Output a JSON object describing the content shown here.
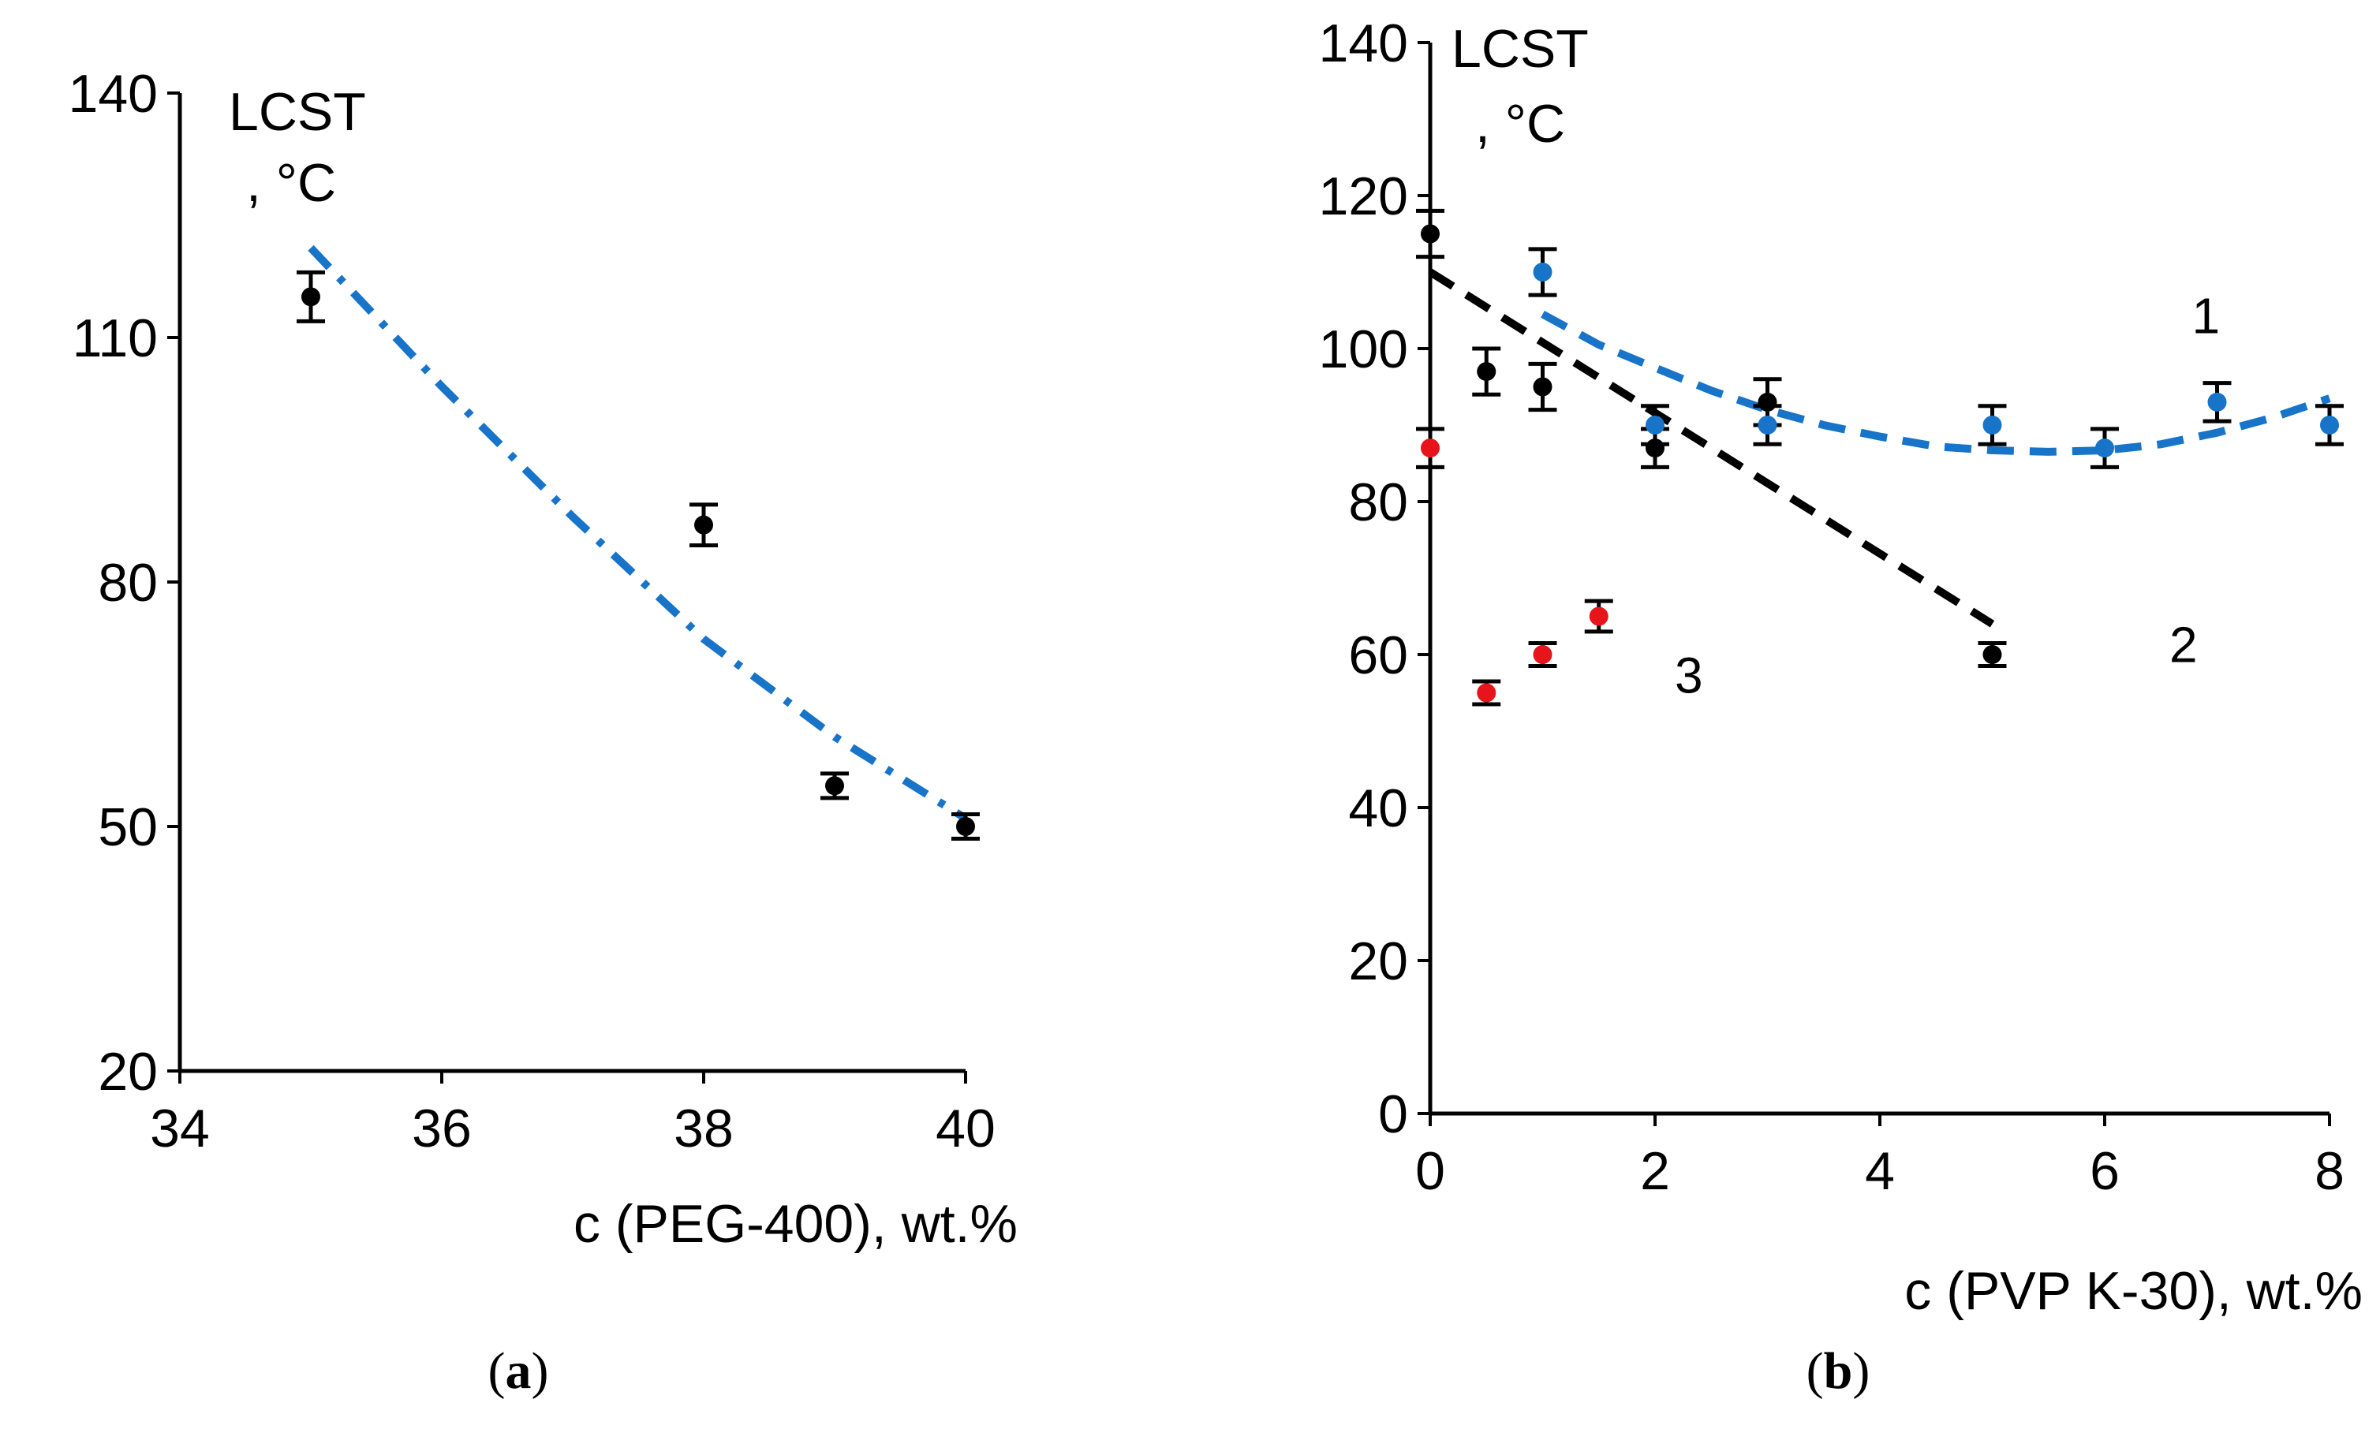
{
  "chart_data": [
    {
      "type": "scatter",
      "panel_label": {
        "open": "(",
        "letter": "a",
        "close": ")"
      },
      "ylabel_line1": "LCST",
      "ylabel_line2": ", °C",
      "xlabel": "c (PEG-400), wt.%",
      "xlim": [
        34,
        40
      ],
      "ylim": [
        20,
        140
      ],
      "xticks": [
        34,
        36,
        38,
        40
      ],
      "yticks": [
        20,
        50,
        80,
        110,
        140
      ],
      "grid": false,
      "series": [
        {
          "color": "#000000",
          "points": [
            {
              "x": 35,
              "y": 115,
              "err": 3
            },
            {
              "x": 38,
              "y": 87,
              "err": 2.5
            },
            {
              "x": 39,
              "y": 55,
              "err": 1.5
            },
            {
              "x": 40,
              "y": 50,
              "err": 1.5
            }
          ]
        }
      ],
      "trendlines": [
        {
          "style": "dash-dot",
          "color": "#1874c8",
          "points": [
            [
              35,
              121
            ],
            [
              36,
              104
            ],
            [
              37,
              88
            ],
            [
              38,
              73
            ],
            [
              39,
              61
            ],
            [
              40,
              51
            ]
          ]
        }
      ]
    },
    {
      "type": "scatter",
      "panel_label": {
        "open": "(",
        "letter": "b",
        "close": ")"
      },
      "ylabel_line1": "LCST",
      "ylabel_line2": ", °C",
      "xlabel": "c (PVP K-30), wt.%",
      "xlim": [
        0,
        8
      ],
      "ylim": [
        0,
        140
      ],
      "xticks": [
        0,
        2,
        4,
        6,
        8
      ],
      "yticks": [
        0,
        20,
        40,
        60,
        80,
        100,
        120,
        140
      ],
      "grid": false,
      "series": [
        {
          "color": "#000000",
          "points": [
            {
              "x": 0,
              "y": 115,
              "err": 3
            },
            {
              "x": 0.5,
              "y": 97,
              "err": 3
            },
            {
              "x": 1,
              "y": 95,
              "err": 3
            },
            {
              "x": 2,
              "y": 87,
              "err": 2.5
            },
            {
              "x": 3,
              "y": 93,
              "err": 3
            },
            {
              "x": 5,
              "y": 60,
              "err": 1.5
            }
          ]
        },
        {
          "color": "#1874c8",
          "points": [
            {
              "x": 1,
              "y": 110,
              "err": 3
            },
            {
              "x": 2,
              "y": 90,
              "err": 2.5
            },
            {
              "x": 3,
              "y": 90,
              "err": 2.5
            },
            {
              "x": 5,
              "y": 90,
              "err": 2.5
            },
            {
              "x": 6,
              "y": 87,
              "err": 2.5
            },
            {
              "x": 7,
              "y": 93,
              "err": 2.5
            },
            {
              "x": 8,
              "y": 90,
              "err": 2.5
            }
          ]
        },
        {
          "color": "#e8141b",
          "points": [
            {
              "x": 0,
              "y": 87,
              "err": 2.5
            },
            {
              "x": 0.5,
              "y": 55,
              "err": 1.5
            },
            {
              "x": 1,
              "y": 60,
              "err": 1.5
            },
            {
              "x": 1.5,
              "y": 65,
              "err": 2
            }
          ]
        }
      ],
      "trendlines": [
        {
          "style": "dashed",
          "color": "#1874c8",
          "points": [
            [
              1,
              104.5
            ],
            [
              1.5,
              100.5
            ],
            [
              2,
              97.5
            ],
            [
              2.5,
              94.5
            ],
            [
              3,
              92
            ],
            [
              3.5,
              90
            ],
            [
              4,
              88.5
            ],
            [
              4.5,
              87.2
            ],
            [
              5,
              86.7
            ],
            [
              5.5,
              86.5
            ],
            [
              6,
              86.7
            ],
            [
              6.5,
              87.5
            ],
            [
              7,
              89
            ],
            [
              7.5,
              91
            ],
            [
              8,
              93.5
            ]
          ]
        },
        {
          "style": "dashed",
          "color": "#000000",
          "points": [
            [
              0,
              110
            ],
            [
              5,
              64
            ]
          ]
        }
      ],
      "curve_labels": [
        {
          "text": "1",
          "x": 6.9,
          "y": 102
        },
        {
          "text": "2",
          "x": 6.7,
          "y": 59
        },
        {
          "text": "3",
          "x": 2.3,
          "y": 55
        }
      ]
    }
  ]
}
